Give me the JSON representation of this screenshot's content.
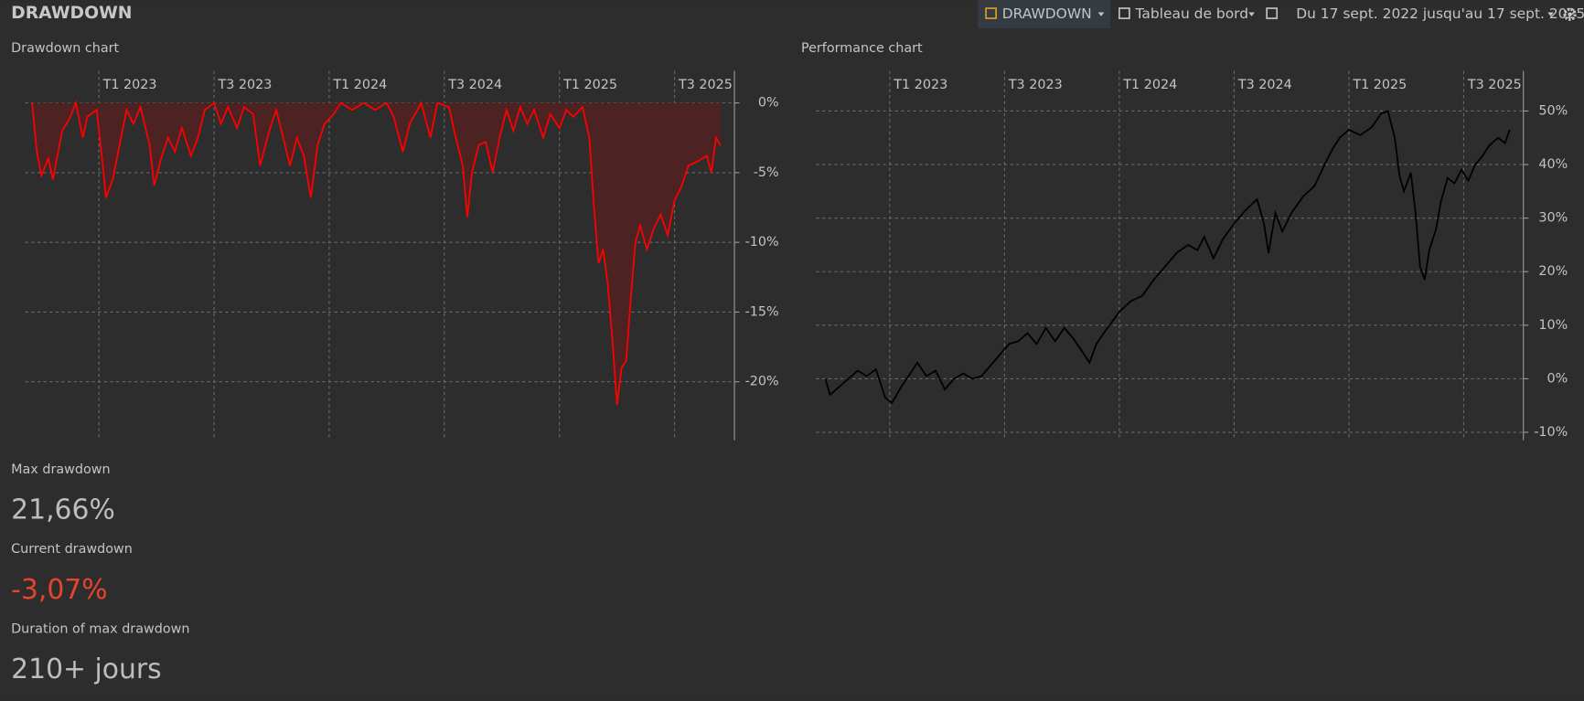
{
  "header": {
    "title": "DRAWDOWN",
    "tab": "DRAWDOWN",
    "dashboard": "Tableau de bord",
    "date_range": "Du 17 sept. 2022 jusqu'au 17 sept. 2025"
  },
  "chart_data": [
    {
      "type": "area",
      "title": "Drawdown chart",
      "color": "#ff0000",
      "fill_color": "#4d2222",
      "grid": true,
      "x": [
        2022.71,
        2022.73,
        2022.75,
        2022.78,
        2022.8,
        2022.84,
        2022.87,
        2022.9,
        2022.93,
        2022.95,
        2022.99,
        2023.02,
        2023.03,
        2023.06,
        2023.09,
        2023.12,
        2023.15,
        2023.18,
        2023.22,
        2023.24,
        2023.27,
        2023.3,
        2023.33,
        2023.36,
        2023.4,
        2023.43,
        2023.46,
        2023.5,
        2023.53,
        2023.56,
        2023.6,
        2023.63,
        2023.67,
        2023.7,
        2023.74,
        2023.77,
        2023.8,
        2023.83,
        2023.86,
        2023.89,
        2023.92,
        2023.95,
        2023.98,
        2024.02,
        2024.05,
        2024.1,
        2024.15,
        2024.2,
        2024.25,
        2024.28,
        2024.32,
        2024.35,
        2024.4,
        2024.44,
        2024.47,
        2024.52,
        2024.55,
        2024.58,
        2024.6,
        2024.62,
        2024.65,
        2024.68,
        2024.71,
        2024.74,
        2024.77,
        2024.8,
        2024.83,
        2024.86,
        2024.89,
        2024.93,
        2024.96,
        2025.0,
        2025.03,
        2025.06,
        2025.1,
        2025.13,
        2025.15,
        2025.17,
        2025.19,
        2025.21,
        2025.23,
        2025.25,
        2025.27,
        2025.29,
        2025.31,
        2025.33,
        2025.35,
        2025.38,
        2025.41,
        2025.44,
        2025.47,
        2025.5,
        2025.53,
        2025.56,
        2025.6,
        2025.64,
        2025.66,
        2025.68,
        2025.7
      ],
      "values": [
        0,
        -3.5,
        -5.2,
        -4,
        -5.5,
        -2,
        -1.2,
        0,
        -2.5,
        -1,
        -0.5,
        -5,
        -6.8,
        -5.5,
        -3,
        -0.5,
        -1.5,
        -0.3,
        -3,
        -5.9,
        -4,
        -2.5,
        -3.5,
        -1.8,
        -3.8,
        -2.5,
        -0.5,
        0,
        -1.5,
        -0.3,
        -1.8,
        -0.3,
        -0.8,
        -4.5,
        -2,
        -0.5,
        -2.5,
        -4.5,
        -2.5,
        -3.8,
        -6.8,
        -3,
        -1.5,
        -0.8,
        0,
        -0.5,
        0,
        -0.5,
        0,
        -1,
        -3.5,
        -1.5,
        0,
        -2.5,
        0,
        -0.3,
        -2.5,
        -4.5,
        -8.2,
        -5,
        -3,
        -2.8,
        -5,
        -2.5,
        -0.5,
        -2,
        -0.3,
        -1.5,
        -0.5,
        -2.5,
        -0.8,
        -1.8,
        -0.5,
        -1,
        -0.3,
        -2.5,
        -7.5,
        -11.5,
        -10.5,
        -13,
        -17,
        -21.66,
        -19,
        -18.5,
        -14,
        -10,
        -8.8,
        -10.5,
        -9,
        -8,
        -9.5,
        -7,
        -6,
        -4.5,
        -4.2,
        -3.8,
        -5,
        -2.5,
        -3.07
      ],
      "xlim": [
        2022.68,
        2025.76
      ],
      "xticks": [
        {
          "value": 2023.0,
          "label": "T1 2023"
        },
        {
          "value": 2023.5,
          "label": "T3 2023"
        },
        {
          "value": 2024.0,
          "label": "T1 2024"
        },
        {
          "value": 2024.5,
          "label": "T3 2024"
        },
        {
          "value": 2025.0,
          "label": "T1 2025"
        },
        {
          "value": 2025.5,
          "label": "T3 2025"
        }
      ],
      "ylim": [
        -24.2,
        2.3
      ],
      "yticks": [
        {
          "value": 0,
          "label": "0%"
        },
        {
          "value": -5,
          "label": "-5%"
        },
        {
          "value": -10,
          "label": "-10%"
        },
        {
          "value": -15,
          "label": "-15%"
        },
        {
          "value": -20,
          "label": "-20%"
        }
      ]
    },
    {
      "type": "line",
      "title": "Performance chart",
      "color": "#000000",
      "grid": true,
      "x": [
        2022.72,
        2022.74,
        2022.78,
        2022.82,
        2022.86,
        2022.9,
        2022.94,
        2022.98,
        2023.01,
        2023.05,
        2023.09,
        2023.12,
        2023.16,
        2023.2,
        2023.24,
        2023.28,
        2023.32,
        2023.36,
        2023.4,
        2023.44,
        2023.48,
        2023.52,
        2023.56,
        2023.6,
        2023.64,
        2023.68,
        2023.72,
        2023.76,
        2023.8,
        2023.84,
        2023.87,
        2023.9,
        2023.94,
        2024.0,
        2024.05,
        2024.1,
        2024.15,
        2024.2,
        2024.25,
        2024.3,
        2024.34,
        2024.37,
        2024.41,
        2024.45,
        2024.5,
        2024.55,
        2024.6,
        2024.63,
        2024.65,
        2024.68,
        2024.71,
        2024.75,
        2024.8,
        2024.85,
        2024.9,
        2024.93,
        2024.96,
        2025.0,
        2025.05,
        2025.1,
        2025.14,
        2025.17,
        2025.2,
        2025.22,
        2025.24,
        2025.27,
        2025.29,
        2025.31,
        2025.33,
        2025.35,
        2025.38,
        2025.4,
        2025.43,
        2025.46,
        2025.49,
        2025.52,
        2025.55,
        2025.58,
        2025.61,
        2025.65,
        2025.68,
        2025.7
      ],
      "values": [
        0,
        -3,
        -1.5,
        0,
        1.5,
        0.5,
        1.8,
        -3.5,
        -4.5,
        -1.5,
        1,
        3,
        0.5,
        1.5,
        -2,
        0,
        1,
        0,
        0.5,
        2.5,
        4.5,
        6.5,
        7,
        8.5,
        6.5,
        9.5,
        7,
        9.5,
        7.5,
        5,
        3,
        6.5,
        9,
        12.5,
        14.5,
        15.5,
        18.5,
        21,
        23.5,
        25,
        24,
        26.5,
        22.5,
        26,
        29,
        31.5,
        33.5,
        29,
        23.5,
        31,
        27.5,
        31,
        34,
        36,
        40.5,
        43,
        45,
        46.5,
        45.5,
        47,
        49.5,
        50,
        45,
        38,
        35,
        38.5,
        31,
        21,
        18.5,
        24,
        28,
        33,
        37.5,
        36.5,
        39,
        37,
        40,
        41.5,
        43.5,
        45,
        44,
        46.5
      ],
      "xlim": [
        2022.68,
        2025.76
      ],
      "xticks": [
        {
          "value": 2023.0,
          "label": "T1 2023"
        },
        {
          "value": 2023.5,
          "label": "T3 2023"
        },
        {
          "value": 2024.0,
          "label": "T1 2024"
        },
        {
          "value": 2024.5,
          "label": "T3 2024"
        },
        {
          "value": 2025.0,
          "label": "T1 2025"
        },
        {
          "value": 2025.5,
          "label": "T3 2025"
        }
      ],
      "ylim": [
        -11.5,
        57.5
      ],
      "yticks": [
        {
          "value": 50,
          "label": "50%"
        },
        {
          "value": 40,
          "label": "40%"
        },
        {
          "value": 30,
          "label": "30%"
        },
        {
          "value": 20,
          "label": "20%"
        },
        {
          "value": 10,
          "label": "10%"
        },
        {
          "value": 0,
          "label": "0%"
        },
        {
          "value": -10,
          "label": "-10%"
        }
      ]
    }
  ],
  "stats": [
    {
      "label": "Max drawdown",
      "value": "21,66%",
      "color": "#bdbdbd"
    },
    {
      "label": "Current drawdown",
      "value": "-3,07%",
      "color": "#e8442c"
    },
    {
      "label": "Duration of max drawdown",
      "value": "210+ jours",
      "color": "#bdbdbd"
    }
  ]
}
